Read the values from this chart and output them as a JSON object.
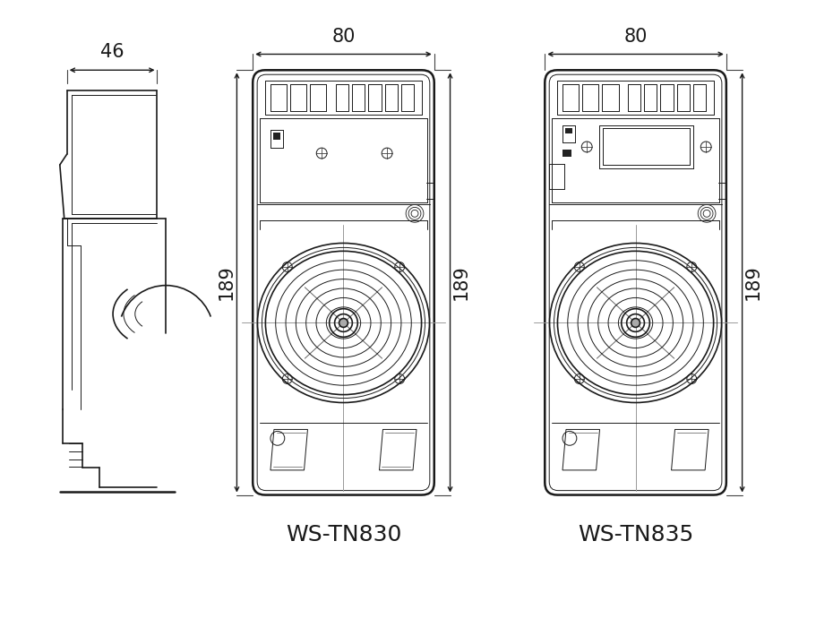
{
  "bg_color": "#ffffff",
  "line_color": "#1a1a1a",
  "labels": {
    "model1": "WS-TN830",
    "model2": "WS-TN835",
    "dim_width_side": "46",
    "dim_width_front": "80",
    "dim_width_front2": "80",
    "dim_height_front": "189",
    "dim_height_front2": "189"
  },
  "font_size_dim": 15,
  "font_size_model": 18
}
